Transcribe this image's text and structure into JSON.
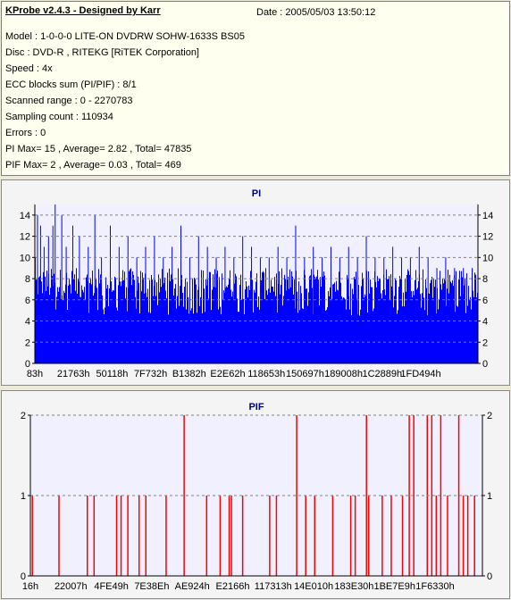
{
  "info": {
    "title": "KProbe v2.4.3 - Designed by Karr",
    "date": "Date : 2005/05/03 13:50:12",
    "lines": [
      "Model : 1-0-0-0 LITE-ON DVDRW SOHW-1633S BS05",
      "Disc : DVD-R , RITEKG [RiTEK Corporation]",
      "Speed : 4x",
      "ECC blocks sum (PI/PIF) : 8/1",
      "Scanned range : 0 - 2270783",
      "Sampling count : 110934",
      "Errors : 0",
      "PI Max= 15 , Average= 2.82 , Total= 47835",
      "PIF Max= 2 , Average= 0.03 , Total= 469"
    ]
  },
  "chart_data": [
    {
      "type": "bar",
      "title": "PI",
      "x_tick_labels": [
        "83h",
        "21763h",
        "50118h",
        "7F732h",
        "B1382h",
        "E2E62h",
        "118653h",
        "150697h",
        "189008h",
        "1C2889h",
        "1FD494h"
      ],
      "y_ticks": [
        0,
        2,
        4,
        6,
        8,
        10,
        12,
        14
      ],
      "ylim": [
        0,
        15
      ],
      "grid": true,
      "bar_color": "#0000ff",
      "baseline_band": [
        4.5,
        5.5
      ],
      "typical_range": [
        6,
        9
      ],
      "max": 15,
      "average": 2.82,
      "spikes": [
        {
          "x_frac": 0.0,
          "value": 10
        },
        {
          "x_frac": 0.005,
          "value": 14
        },
        {
          "x_frac": 0.012,
          "value": 13
        },
        {
          "x_frac": 0.02,
          "value": 11
        },
        {
          "x_frac": 0.03,
          "value": 12
        },
        {
          "x_frac": 0.04,
          "value": 13
        },
        {
          "x_frac": 0.045,
          "value": 15
        },
        {
          "x_frac": 0.06,
          "value": 14
        },
        {
          "x_frac": 0.07,
          "value": 11
        },
        {
          "x_frac": 0.085,
          "value": 13
        },
        {
          "x_frac": 0.1,
          "value": 12
        },
        {
          "x_frac": 0.12,
          "value": 11
        },
        {
          "x_frac": 0.135,
          "value": 14
        },
        {
          "x_frac": 0.15,
          "value": 10
        },
        {
          "x_frac": 0.17,
          "value": 13
        },
        {
          "x_frac": 0.19,
          "value": 11
        },
        {
          "x_frac": 0.21,
          "value": 12
        },
        {
          "x_frac": 0.23,
          "value": 10
        },
        {
          "x_frac": 0.25,
          "value": 11
        },
        {
          "x_frac": 0.27,
          "value": 12
        },
        {
          "x_frac": 0.29,
          "value": 10
        },
        {
          "x_frac": 0.31,
          "value": 11
        },
        {
          "x_frac": 0.33,
          "value": 13
        },
        {
          "x_frac": 0.35,
          "value": 10
        },
        {
          "x_frac": 0.37,
          "value": 12
        },
        {
          "x_frac": 0.39,
          "value": 11
        },
        {
          "x_frac": 0.41,
          "value": 10
        },
        {
          "x_frac": 0.43,
          "value": 11
        },
        {
          "x_frac": 0.45,
          "value": 10
        },
        {
          "x_frac": 0.47,
          "value": 12
        },
        {
          "x_frac": 0.49,
          "value": 11
        },
        {
          "x_frac": 0.51,
          "value": 10
        },
        {
          "x_frac": 0.53,
          "value": 10
        },
        {
          "x_frac": 0.55,
          "value": 11
        },
        {
          "x_frac": 0.57,
          "value": 10
        },
        {
          "x_frac": 0.59,
          "value": 13
        },
        {
          "x_frac": 0.61,
          "value": 10
        },
        {
          "x_frac": 0.63,
          "value": 11
        },
        {
          "x_frac": 0.65,
          "value": 10
        },
        {
          "x_frac": 0.67,
          "value": 11
        },
        {
          "x_frac": 0.69,
          "value": 10
        },
        {
          "x_frac": 0.71,
          "value": 11
        },
        {
          "x_frac": 0.73,
          "value": 10
        },
        {
          "x_frac": 0.75,
          "value": 12
        },
        {
          "x_frac": 0.77,
          "value": 10
        },
        {
          "x_frac": 0.79,
          "value": 10
        },
        {
          "x_frac": 0.81,
          "value": 11
        },
        {
          "x_frac": 0.83,
          "value": 10
        },
        {
          "x_frac": 0.85,
          "value": 10
        },
        {
          "x_frac": 0.87,
          "value": 11
        },
        {
          "x_frac": 0.89,
          "value": 10
        },
        {
          "x_frac": 0.91,
          "value": 9
        },
        {
          "x_frac": 0.93,
          "value": 10
        },
        {
          "x_frac": 0.95,
          "value": 9
        },
        {
          "x_frac": 0.97,
          "value": 9
        },
        {
          "x_frac": 0.99,
          "value": 9
        }
      ]
    },
    {
      "type": "bar",
      "title": "PIF",
      "x_tick_labels": [
        "16h",
        "22007h",
        "4FE49h",
        "7E38Eh",
        "AE924h",
        "E2166h",
        "117313h",
        "14E010h",
        "183E30h",
        "1BE7E9h",
        "1F6330h"
      ],
      "y_ticks": [
        0,
        1,
        2
      ],
      "ylim": [
        0,
        2
      ],
      "grid": true,
      "bar_color": "#ff0000",
      "max": 2,
      "average": 0.03,
      "bars": [
        {
          "x_frac": 0.003,
          "value": 1
        },
        {
          "x_frac": 0.062,
          "value": 1
        },
        {
          "x_frac": 0.125,
          "value": 1
        },
        {
          "x_frac": 0.14,
          "value": 1
        },
        {
          "x_frac": 0.19,
          "value": 1
        },
        {
          "x_frac": 0.2,
          "value": 1
        },
        {
          "x_frac": 0.215,
          "value": 1
        },
        {
          "x_frac": 0.24,
          "value": 1
        },
        {
          "x_frac": 0.255,
          "value": 1
        },
        {
          "x_frac": 0.3,
          "value": 1
        },
        {
          "x_frac": 0.34,
          "value": 2
        },
        {
          "x_frac": 0.39,
          "value": 1
        },
        {
          "x_frac": 0.42,
          "value": 1
        },
        {
          "x_frac": 0.44,
          "value": 1
        },
        {
          "x_frac": 0.445,
          "value": 1
        },
        {
          "x_frac": 0.47,
          "value": 1
        },
        {
          "x_frac": 0.53,
          "value": 1
        },
        {
          "x_frac": 0.545,
          "value": 1
        },
        {
          "x_frac": 0.59,
          "value": 2
        },
        {
          "x_frac": 0.61,
          "value": 1
        },
        {
          "x_frac": 0.63,
          "value": 1
        },
        {
          "x_frac": 0.67,
          "value": 1
        },
        {
          "x_frac": 0.71,
          "value": 1
        },
        {
          "x_frac": 0.72,
          "value": 1
        },
        {
          "x_frac": 0.745,
          "value": 2
        },
        {
          "x_frac": 0.75,
          "value": 1
        },
        {
          "x_frac": 0.78,
          "value": 1
        },
        {
          "x_frac": 0.8,
          "value": 1
        },
        {
          "x_frac": 0.825,
          "value": 1
        },
        {
          "x_frac": 0.84,
          "value": 2
        },
        {
          "x_frac": 0.85,
          "value": 2
        },
        {
          "x_frac": 0.88,
          "value": 2
        },
        {
          "x_frac": 0.89,
          "value": 2
        },
        {
          "x_frac": 0.9,
          "value": 1
        },
        {
          "x_frac": 0.91,
          "value": 2
        },
        {
          "x_frac": 0.925,
          "value": 1
        },
        {
          "x_frac": 0.95,
          "value": 2
        },
        {
          "x_frac": 0.96,
          "value": 1
        },
        {
          "x_frac": 0.97,
          "value": 1
        },
        {
          "x_frac": 0.985,
          "value": 1
        }
      ]
    }
  ]
}
